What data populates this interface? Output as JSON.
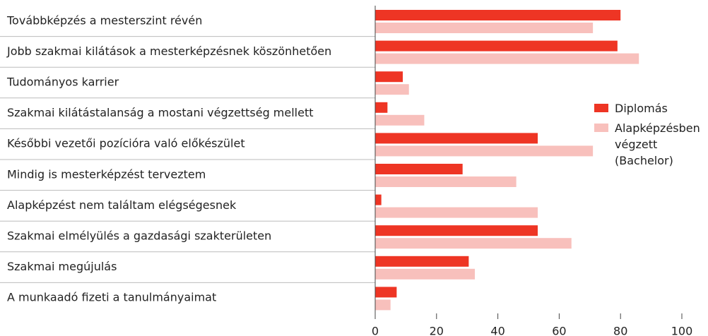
{
  "chart_data": {
    "type": "bar",
    "orientation": "horizontal",
    "categories": [
      "Továbbképzés a mesterszint révén",
      "Jobb szakmai kilátások a mesterképzésnek köszönhetően",
      "Tudományos karrier",
      "Szakmai kilátástalanság a mostani végzettség mellett",
      "Későbbi vezetői  pozícióra való előkészület",
      "Mindig is mesterképzést terveztem",
      "Alapképzést nem találtam elégségesnek",
      "Szakmai elmélyülés a gazdasági szakterületen",
      "Szakmai megújulás",
      "A munkaadó  fizeti a tanulmányaimat"
    ],
    "series": [
      {
        "name": "Diplomás",
        "color": "#ee3524",
        "values": [
          80,
          79,
          9,
          4,
          53,
          28.5,
          2,
          53,
          30.5,
          7
        ]
      },
      {
        "name": "Alapképzésben végzett (Bachelor)",
        "color": "#f8c0bc",
        "values": [
          71,
          86,
          11,
          16,
          71,
          46,
          53,
          64,
          32.5,
          5
        ]
      }
    ],
    "xlim": [
      0,
      100
    ],
    "xticks": [
      0,
      20,
      40,
      60,
      80,
      100
    ],
    "legend": "right"
  }
}
